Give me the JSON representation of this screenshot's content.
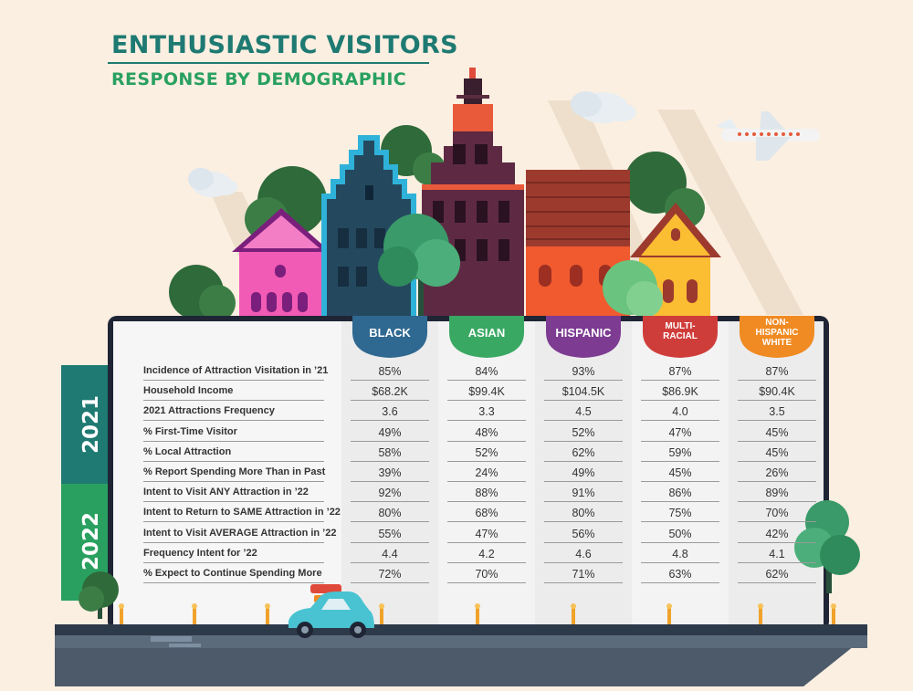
{
  "header": {
    "title": "ENTHUSIASTIC VISITORS",
    "subtitle": "RESPONSE BY DEMOGRAPHIC"
  },
  "years": [
    "2021",
    "2022"
  ],
  "colors": {
    "teal": "#1e7a72",
    "green": "#29a060",
    "black": "#2f6890",
    "asian": "#39a862",
    "hispanic": "#7d3b92",
    "multiracial": "#cf3d3a",
    "white": "#f08a22"
  },
  "chart_data": {
    "type": "table",
    "title": "ENTHUSIASTIC VISITORS",
    "subtitle": "RESPONSE BY DEMOGRAPHIC",
    "columns": [
      {
        "line1": "BLACK",
        "line2": ""
      },
      {
        "line1": "ASIAN",
        "line2": ""
      },
      {
        "line1": "HISPANIC",
        "line2": ""
      },
      {
        "line1": "MULTI-",
        "line2": "RACIAL"
      },
      {
        "line1": "NON-",
        "line2": "HISPANIC",
        "line3": "WHITE"
      }
    ],
    "rows": [
      {
        "label": "Incidence of Attraction Visitation in ’21",
        "year": "2021",
        "values": [
          "85%",
          "84%",
          "93%",
          "87%",
          "87%"
        ]
      },
      {
        "label": "Household Income",
        "year": "2021",
        "values": [
          "$68.2K",
          "$99.4K",
          "$104.5K",
          "$86.9K",
          "$90.4K"
        ]
      },
      {
        "label": "2021 Attractions Frequency",
        "year": "2021",
        "values": [
          "3.6",
          "3.3",
          "4.5",
          "4.0",
          "3.5"
        ]
      },
      {
        "label": "% First-Time Visitor",
        "year": "2021",
        "values": [
          "49%",
          "48%",
          "52%",
          "47%",
          "45%"
        ]
      },
      {
        "label": "% Local Attraction",
        "year": "2021",
        "values": [
          "58%",
          "52%",
          "62%",
          "59%",
          "45%"
        ]
      },
      {
        "label": "% Report Spending More Than in Past",
        "year": "2021",
        "values": [
          "39%",
          "24%",
          "49%",
          "45%",
          "26%"
        ]
      },
      {
        "label": "Intent to Visit ANY Attraction in ’22",
        "year": "2022",
        "values": [
          "92%",
          "88%",
          "91%",
          "86%",
          "89%"
        ]
      },
      {
        "label": "Intent to Return to SAME Attraction in ’22",
        "year": "2022",
        "values": [
          "80%",
          "68%",
          "80%",
          "75%",
          "70%"
        ]
      },
      {
        "label": "Intent to Visit AVERAGE Attraction in ’22",
        "year": "2022",
        "values": [
          "55%",
          "47%",
          "56%",
          "50%",
          "42%"
        ]
      },
      {
        "label": "Frequency Intent for ’22",
        "year": "2022",
        "values": [
          "4.4",
          "4.2",
          "4.6",
          "4.8",
          "4.1"
        ]
      },
      {
        "label": "% Expect to Continue Spending More",
        "year": "2022",
        "values": [
          "72%",
          "70%",
          "71%",
          "63%",
          "62%"
        ]
      }
    ]
  }
}
